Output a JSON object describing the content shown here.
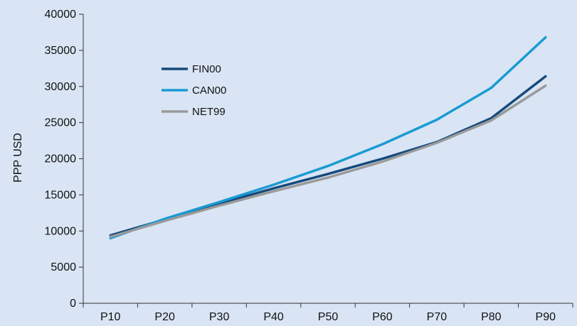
{
  "chart_data": {
    "type": "line",
    "title": "",
    "xlabel": "",
    "ylabel": "PPP USD",
    "categories": [
      "P10",
      "P20",
      "P30",
      "P40",
      "P50",
      "P60",
      "P70",
      "P80",
      "P90"
    ],
    "ylim": [
      0,
      40000
    ],
    "yticks": [
      0,
      5000,
      10000,
      15000,
      20000,
      25000,
      30000,
      35000,
      40000
    ],
    "ytick_labels": [
      "0",
      "5000",
      "10000",
      "15000",
      "20000",
      "25000",
      "30000",
      "35000",
      "40000"
    ],
    "grid": false,
    "legend_position": "upper-left inside plot",
    "series": [
      {
        "name": "FIN00",
        "color": "#174a7c",
        "values": [
          9400,
          11600,
          13800,
          15900,
          17900,
          20000,
          22300,
          25600,
          31400
        ]
      },
      {
        "name": "CAN00",
        "color": "#1a9bd3",
        "values": [
          9000,
          11700,
          14000,
          16400,
          19000,
          22000,
          25400,
          29800,
          36800
        ]
      },
      {
        "name": "NET99",
        "color": "#9a9a9a",
        "values": [
          9200,
          11400,
          13500,
          15500,
          17400,
          19600,
          22200,
          25300,
          30100
        ]
      }
    ]
  }
}
